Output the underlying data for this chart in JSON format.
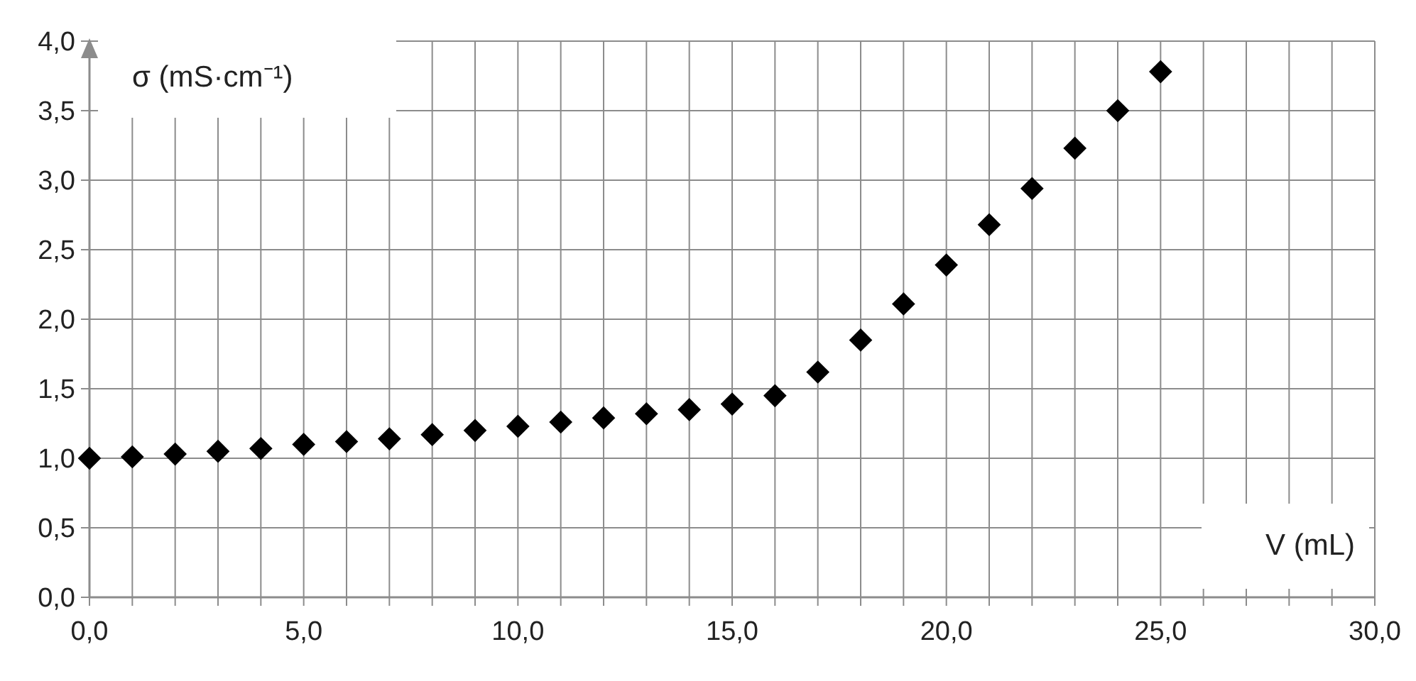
{
  "chart_data": {
    "type": "scatter",
    "xlabel": "V (mL)",
    "ylabel": "σ (mS·cm⁻¹)",
    "x": [
      0,
      1,
      2,
      3,
      4,
      5,
      6,
      7,
      8,
      9,
      10,
      11,
      12,
      13,
      14,
      15,
      16,
      17,
      18,
      19,
      20,
      21,
      22,
      23,
      24,
      25
    ],
    "series": [
      {
        "color": "#000000",
        "values": [
          1.0,
          1.01,
          1.03,
          1.05,
          1.07,
          1.1,
          1.12,
          1.14,
          1.17,
          1.2,
          1.23,
          1.26,
          1.29,
          1.32,
          1.35,
          1.39,
          1.45,
          1.62,
          1.85,
          2.11,
          2.39,
          2.68,
          2.94,
          3.23,
          3.5,
          3.78
        ]
      }
    ],
    "marker": "diamond",
    "grid": true,
    "xlim": [
      0,
      30
    ],
    "ylim": [
      0,
      4
    ],
    "xticks": [
      {
        "value": 0,
        "label": "0,0"
      },
      {
        "value": 1,
        "label": null
      },
      {
        "value": 2,
        "label": null
      },
      {
        "value": 3,
        "label": null
      },
      {
        "value": 4,
        "label": null
      },
      {
        "value": 5,
        "label": "5,0"
      },
      {
        "value": 6,
        "label": null
      },
      {
        "value": 7,
        "label": null
      },
      {
        "value": 8,
        "label": null
      },
      {
        "value": 9,
        "label": null
      },
      {
        "value": 10,
        "label": "10,0"
      },
      {
        "value": 11,
        "label": null
      },
      {
        "value": 12,
        "label": null
      },
      {
        "value": 13,
        "label": null
      },
      {
        "value": 14,
        "label": null
      },
      {
        "value": 15,
        "label": "15,0"
      },
      {
        "value": 16,
        "label": null
      },
      {
        "value": 17,
        "label": null
      },
      {
        "value": 18,
        "label": null
      },
      {
        "value": 19,
        "label": null
      },
      {
        "value": 20,
        "label": "20,0"
      },
      {
        "value": 21,
        "label": null
      },
      {
        "value": 22,
        "label": null
      },
      {
        "value": 23,
        "label": null
      },
      {
        "value": 24,
        "label": null
      },
      {
        "value": 25,
        "label": "25,0"
      },
      {
        "value": 26,
        "label": null
      },
      {
        "value": 27,
        "label": null
      },
      {
        "value": 28,
        "label": null
      },
      {
        "value": 29,
        "label": null
      },
      {
        "value": 30,
        "label": "30,0"
      }
    ],
    "yticks": [
      {
        "value": 0,
        "label": "0,0"
      },
      {
        "value": 0.5,
        "label": "0,5"
      },
      {
        "value": 1,
        "label": "1,0"
      },
      {
        "value": 1.5,
        "label": "1,5"
      },
      {
        "value": 2,
        "label": "2,0"
      },
      {
        "value": 2.5,
        "label": "2,5"
      },
      {
        "value": 3,
        "label": "3,0"
      },
      {
        "value": 3.5,
        "label": "3,5"
      },
      {
        "value": 4,
        "label": "4,0"
      }
    ]
  }
}
